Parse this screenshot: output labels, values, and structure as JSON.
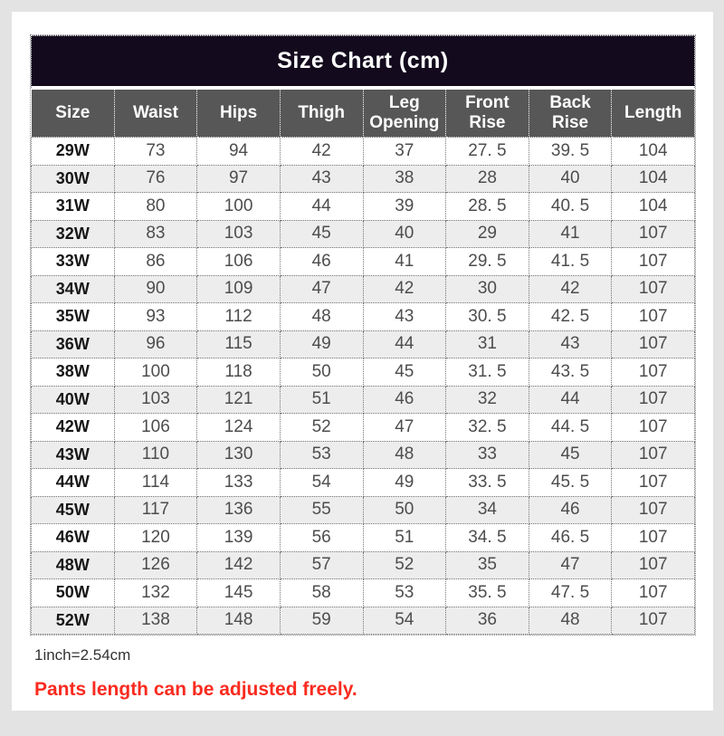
{
  "page": {
    "background_color": "#e3e3e3",
    "card_color": "#ffffff"
  },
  "title": {
    "text": "Size Chart (cm)",
    "background_color": "#130a1d",
    "text_color": "#ffffff"
  },
  "chart_data": {
    "type": "table",
    "title": "Size Chart (cm)",
    "header_background": "#575757",
    "alt_row_background": "#ededed",
    "columns": [
      "Size",
      "Waist",
      "Hips",
      "Thigh",
      "Leg Opening",
      "Front Rise",
      "Back Rise",
      "Length"
    ],
    "rows": [
      [
        "29W",
        "73",
        "94",
        "42",
        "37",
        "27. 5",
        "39. 5",
        "104"
      ],
      [
        "30W",
        "76",
        "97",
        "43",
        "38",
        "28",
        "40",
        "104"
      ],
      [
        "31W",
        "80",
        "100",
        "44",
        "39",
        "28. 5",
        "40. 5",
        "104"
      ],
      [
        "32W",
        "83",
        "103",
        "45",
        "40",
        "29",
        "41",
        "107"
      ],
      [
        "33W",
        "86",
        "106",
        "46",
        "41",
        "29. 5",
        "41. 5",
        "107"
      ],
      [
        "34W",
        "90",
        "109",
        "47",
        "42",
        "30",
        "42",
        "107"
      ],
      [
        "35W",
        "93",
        "112",
        "48",
        "43",
        "30. 5",
        "42. 5",
        "107"
      ],
      [
        "36W",
        "96",
        "115",
        "49",
        "44",
        "31",
        "43",
        "107"
      ],
      [
        "38W",
        "100",
        "118",
        "50",
        "45",
        "31. 5",
        "43. 5",
        "107"
      ],
      [
        "40W",
        "103",
        "121",
        "51",
        "46",
        "32",
        "44",
        "107"
      ],
      [
        "42W",
        "106",
        "124",
        "52",
        "47",
        "32. 5",
        "44. 5",
        "107"
      ],
      [
        "43W",
        "110",
        "130",
        "53",
        "48",
        "33",
        "45",
        "107"
      ],
      [
        "44W",
        "114",
        "133",
        "54",
        "49",
        "33. 5",
        "45. 5",
        "107"
      ],
      [
        "45W",
        "117",
        "136",
        "55",
        "50",
        "34",
        "46",
        "107"
      ],
      [
        "46W",
        "120",
        "139",
        "56",
        "51",
        "34. 5",
        "46. 5",
        "107"
      ],
      [
        "48W",
        "126",
        "142",
        "57",
        "52",
        "35",
        "47",
        "107"
      ],
      [
        "50W",
        "132",
        "145",
        "58",
        "53",
        "35. 5",
        "47. 5",
        "107"
      ],
      [
        "52W",
        "138",
        "148",
        "59",
        "54",
        "36",
        "48",
        "107"
      ]
    ]
  },
  "notes": {
    "unit_note": "1inch=2.54cm",
    "highlight_note": "Pants length can be adjusted freely.",
    "highlight_color": "#fa2b1f"
  }
}
